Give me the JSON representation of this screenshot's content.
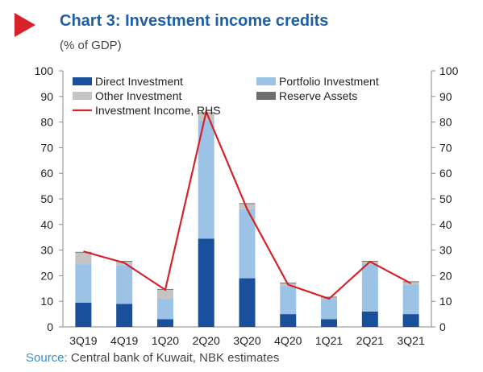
{
  "header": {
    "title": "Chart 3: Investment income credits",
    "subtitle": "(% of GDP)"
  },
  "footer": {
    "source_label": "Source:",
    "source_text": " Central bank of Kuwait, NBK estimates"
  },
  "chart_data": {
    "type": "bar",
    "stacked": true,
    "title": "Chart 3: Investment income credits",
    "subtitle": "(% of GDP)",
    "categories": [
      "3Q19",
      "4Q19",
      "1Q20",
      "2Q20",
      "3Q20",
      "4Q20",
      "1Q21",
      "2Q21",
      "3Q21"
    ],
    "series": [
      {
        "name": "Direct Investment",
        "type": "bar",
        "color": "#1a4f9c",
        "values": [
          9.5,
          9,
          3,
          34.5,
          19,
          5,
          3,
          6,
          5
        ]
      },
      {
        "name": "Portfolio Investment",
        "type": "bar",
        "color": "#9cc3e6",
        "values": [
          15,
          15,
          8,
          46,
          27,
          11,
          8,
          18.5,
          11.5
        ]
      },
      {
        "name": "Other Investment",
        "type": "bar",
        "color": "#c4c4c4",
        "values": [
          4.5,
          1.5,
          3.5,
          3,
          2,
          1,
          0.5,
          1,
          1
        ]
      },
      {
        "name": "Reserve Assets",
        "type": "bar",
        "color": "#6e6e6e",
        "values": [
          0.3,
          0.3,
          0.3,
          0.3,
          0.3,
          0.3,
          0.3,
          0.3,
          0.3
        ]
      },
      {
        "name": "Investment Income, RHS",
        "type": "line",
        "color": "#d6232a",
        "values": [
          29.5,
          25,
          14.5,
          84,
          46,
          16.5,
          11,
          25.5,
          17
        ]
      }
    ],
    "y_left": {
      "min": 0,
      "max": 100,
      "ticks": [
        0,
        10,
        20,
        30,
        40,
        50,
        60,
        70,
        80,
        90,
        100
      ]
    },
    "y_right": {
      "min": 0,
      "max": 100,
      "ticks": [
        0,
        10,
        20,
        30,
        40,
        50,
        60,
        70,
        80,
        90,
        100
      ]
    },
    "grid": false,
    "legend": "top, inside plot, two columns"
  }
}
